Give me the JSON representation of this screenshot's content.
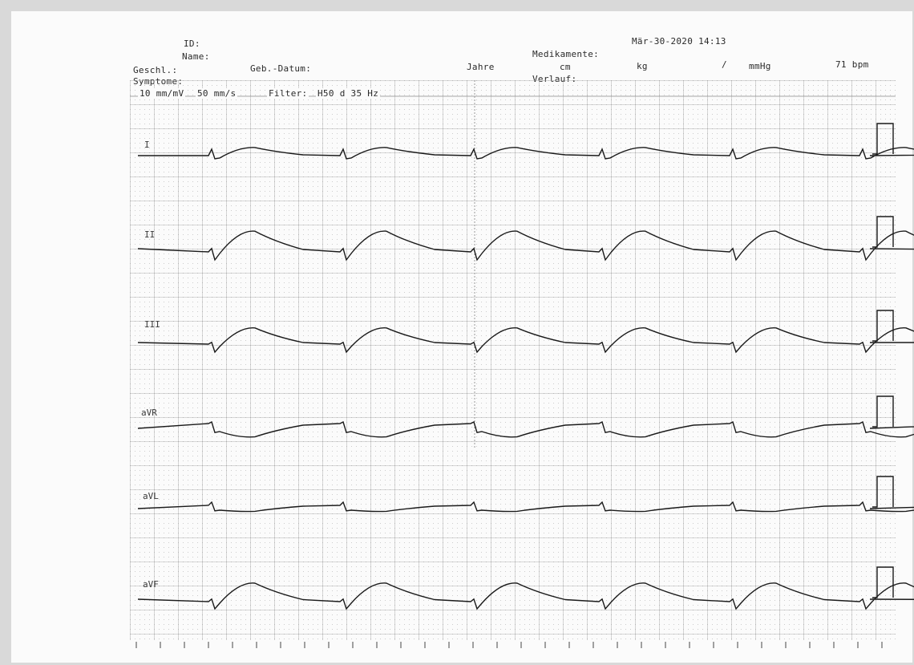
{
  "header": {
    "id_label": "ID:",
    "name_label": "Name:",
    "sex_label": "Geschl.:",
    "dob_label": "Geb.-Datum:",
    "years_label": "Jahre",
    "symptoms_label": "Symptome:",
    "medication_label": "Medikamente:",
    "course_label": "Verlauf:",
    "height_unit": "cm",
    "weight_unit": "kg",
    "bp_separator": "/",
    "bp_unit": "mmHg",
    "heart_rate": "71 bpm",
    "datetime": "Mär-30-2020 14:13"
  },
  "settings": {
    "gain": "10 mm/mV",
    "speed": "50 mm/s",
    "filter_label": "Filter:",
    "filter_value": "H50 d 35 Hz"
  },
  "leads": [
    {
      "name": "I"
    },
    {
      "name": "II"
    },
    {
      "name": "III"
    },
    {
      "name": "aVR"
    },
    {
      "name": "aVL"
    },
    {
      "name": "aVF"
    }
  ],
  "colors": {
    "paper": "#fbfbfb",
    "grid_major": "#8a8a8a",
    "grid_minor": "#b5b5b5",
    "trace": "#1a1a1a"
  }
}
